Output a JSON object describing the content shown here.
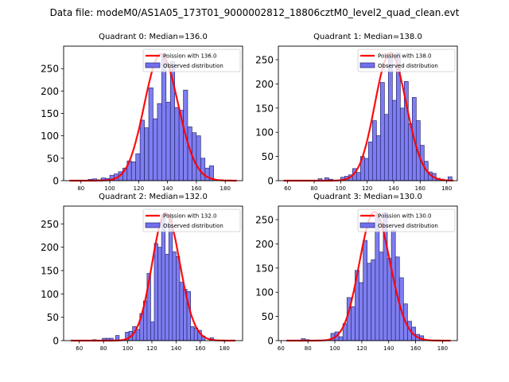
{
  "figure": {
    "suptitle": "Data file: modeM0/AS1A05_173T01_9000002812_18806cztM0_level2_quad_clean.evt"
  },
  "colors": {
    "bar_fill": "#7070f0",
    "bar_edge": "#2a2a70",
    "poisson_line": "#ff0000"
  },
  "chart_data": [
    {
      "type": "bar",
      "title": "Quadrant 0: Median=136.0",
      "legend": [
        "Poission with 136.0",
        "Observed distribution"
      ],
      "legend_position": "top-right",
      "xlim": [
        68,
        192
      ],
      "ylim": [
        0,
        300
      ],
      "xticks": [
        80,
        100,
        120,
        140,
        160,
        180
      ],
      "yticks": [
        0,
        50,
        100,
        150,
        200,
        250
      ],
      "bin_width": 2.95,
      "bins_start": [
        85,
        88,
        91,
        94,
        97,
        100,
        103,
        106,
        109,
        112,
        115,
        118,
        121,
        124,
        127,
        130,
        133,
        136,
        139,
        142,
        145,
        148,
        151,
        154,
        157,
        160,
        163,
        166,
        169
      ],
      "values": [
        3,
        4,
        2,
        6,
        5,
        12,
        15,
        20,
        28,
        44,
        42,
        60,
        135,
        118,
        207,
        138,
        172,
        280,
        175,
        265,
        163,
        157,
        202,
        120,
        107,
        100,
        50,
        28,
        33
      ],
      "poisson_mean": 136.0,
      "poisson_peak": 282,
      "poisson_xrange": [
        72,
        188
      ]
    },
    {
      "type": "bar",
      "title": "Quadrant 1: Median=138.0",
      "legend": [
        "Poission with 138.0",
        "Observed distribution"
      ],
      "legend_position": "top-right",
      "xlim": [
        53,
        188
      ],
      "ylim": [
        0,
        278
      ],
      "xticks": [
        60,
        80,
        100,
        120,
        140,
        160,
        180
      ],
      "yticks": [
        0,
        50,
        100,
        150,
        200,
        250
      ],
      "bin_width": 3.0,
      "bins_start": [
        83,
        88,
        91,
        100,
        103,
        106,
        109,
        112,
        115,
        118,
        121,
        124,
        127,
        130,
        133,
        136,
        139,
        142,
        145,
        148,
        151,
        154,
        157,
        160,
        163,
        166,
        169,
        172,
        175,
        181
      ],
      "values": [
        4,
        6,
        3,
        7,
        9,
        12,
        25,
        17,
        50,
        46,
        80,
        124,
        93,
        203,
        137,
        260,
        166,
        264,
        150,
        205,
        118,
        172,
        124,
        73,
        40,
        18,
        15,
        5,
        3,
        8
      ],
      "poisson_mean": 138.0,
      "poisson_peak": 264,
      "poisson_xrange": [
        57,
        185
      ]
    },
    {
      "type": "bar",
      "title": "Quadrant 2: Median=132.0",
      "legend": [
        "Poission with 132.0",
        "Observed distribution"
      ],
      "legend_position": "top-right",
      "xlim": [
        47,
        195
      ],
      "ylim": [
        0,
        288
      ],
      "xticks": [
        60,
        80,
        100,
        120,
        140,
        160,
        180
      ],
      "yticks": [
        0,
        50,
        100,
        150,
        200,
        250
      ],
      "bin_width": 3.0,
      "bins_start": [
        71,
        79,
        82,
        85,
        90,
        98,
        101,
        104,
        107,
        110,
        113,
        116,
        119,
        122,
        125,
        128,
        131,
        134,
        137,
        140,
        143,
        146,
        149,
        152,
        155,
        158,
        161,
        168
      ],
      "values": [
        2,
        5,
        5,
        5,
        11,
        18,
        20,
        30,
        24,
        58,
        85,
        144,
        40,
        208,
        200,
        270,
        185,
        270,
        190,
        180,
        125,
        110,
        105,
        30,
        27,
        22,
        10,
        6
      ],
      "poisson_mean": 132.0,
      "poisson_peak": 273,
      "poisson_xrange": [
        53,
        189
      ]
    },
    {
      "type": "bar",
      "title": "Quadrant 3: Median=130.0",
      "legend": [
        "Poission with 130.0",
        "Observed distribution"
      ],
      "legend_position": "top-right",
      "xlim": [
        58,
        191
      ],
      "ylim": [
        0,
        278
      ],
      "xticks": [
        60,
        80,
        100,
        120,
        140,
        160,
        180
      ],
      "yticks": [
        0,
        50,
        100,
        150,
        200,
        250
      ],
      "bin_width": 3.0,
      "bins_start": [
        75,
        78,
        97,
        100,
        103,
        106,
        109,
        112,
        115,
        118,
        121,
        124,
        127,
        130,
        133,
        136,
        139,
        142,
        145,
        148,
        151,
        154,
        157,
        160,
        163
      ],
      "values": [
        4,
        2,
        15,
        18,
        8,
        35,
        89,
        70,
        145,
        120,
        207,
        160,
        167,
        260,
        183,
        265,
        170,
        228,
        173,
        130,
        76,
        40,
        28,
        13,
        10
      ],
      "poisson_mean": 130.0,
      "poisson_peak": 266,
      "poisson_xrange": [
        64,
        186
      ]
    }
  ]
}
